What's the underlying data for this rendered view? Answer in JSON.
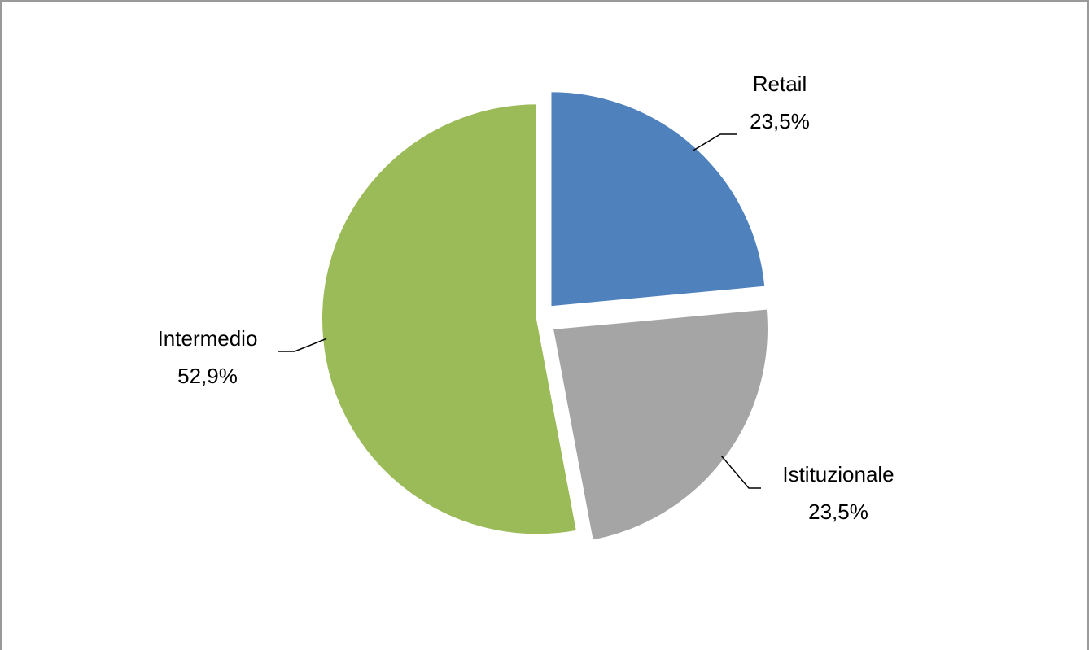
{
  "chart_data": {
    "type": "pie",
    "categories": [
      "Retail",
      "Istituzionale",
      "Intermedio"
    ],
    "values": [
      23.5,
      23.5,
      52.9
    ],
    "value_labels": [
      "23,5%",
      "23,5%",
      "52,9%"
    ],
    "colors": [
      "#4f81bd",
      "#a5a5a5",
      "#9bbb59"
    ]
  }
}
